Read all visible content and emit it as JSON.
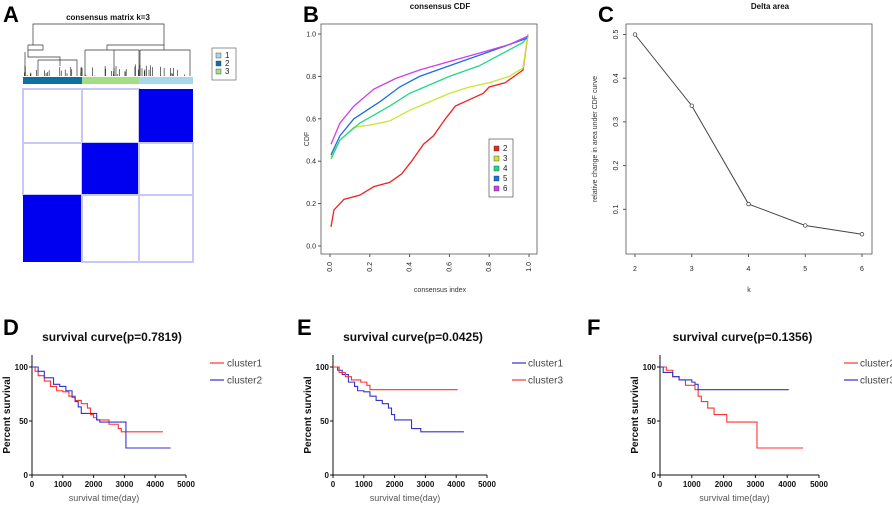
{
  "panel_labels": [
    "A",
    "B",
    "C",
    "D",
    "E",
    "F"
  ],
  "chart_data": [
    {
      "type": "heatmap",
      "title": "consensus matrix k=3",
      "column_cluster_order": [
        "2",
        "3",
        "1"
      ],
      "legend": [
        {
          "label": "1",
          "color": "#a8d8e8"
        },
        {
          "label": "2",
          "color": "#0f6fa0"
        },
        {
          "label": "3",
          "color": "#a5dc86"
        }
      ],
      "cell_color_high": "#0000f0",
      "cell_color_low": "#ffffff"
    },
    {
      "type": "line",
      "title": "consensus CDF",
      "xlabel": "consensus index",
      "ylabel": "CDF",
      "xlim": [
        0,
        1
      ],
      "ylim": [
        0,
        1
      ],
      "xticks": [
        "0.0",
        "0.2",
        "0.4",
        "0.6",
        "0.8",
        "1.0"
      ],
      "yticks": [
        "0.0",
        "0.2",
        "0.4",
        "0.6",
        "0.8",
        "1.0"
      ],
      "legend_position": "right",
      "series": [
        {
          "name": "2",
          "color": "#ee2222",
          "points": [
            [
              0.005,
              0.09
            ],
            [
              0.02,
              0.17
            ],
            [
              0.07,
              0.22
            ],
            [
              0.15,
              0.24
            ],
            [
              0.22,
              0.28
            ],
            [
              0.3,
              0.3
            ],
            [
              0.36,
              0.34
            ],
            [
              0.41,
              0.4
            ],
            [
              0.47,
              0.48
            ],
            [
              0.52,
              0.52
            ],
            [
              0.58,
              0.6
            ],
            [
              0.63,
              0.66
            ],
            [
              0.7,
              0.69
            ],
            [
              0.77,
              0.72
            ],
            [
              0.8,
              0.75
            ],
            [
              0.88,
              0.77
            ],
            [
              0.97,
              0.83
            ],
            [
              0.995,
              1.0
            ]
          ]
        },
        {
          "name": "3",
          "color": "#c8e632",
          "points": [
            [
              0.005,
              0.42
            ],
            [
              0.05,
              0.5
            ],
            [
              0.12,
              0.56
            ],
            [
              0.2,
              0.57
            ],
            [
              0.3,
              0.59
            ],
            [
              0.4,
              0.64
            ],
            [
              0.5,
              0.68
            ],
            [
              0.6,
              0.72
            ],
            [
              0.7,
              0.75
            ],
            [
              0.8,
              0.77
            ],
            [
              0.9,
              0.8
            ],
            [
              0.97,
              0.84
            ],
            [
              0.995,
              1.0
            ]
          ]
        },
        {
          "name": "4",
          "color": "#22d888",
          "points": [
            [
              0.005,
              0.41
            ],
            [
              0.05,
              0.5
            ],
            [
              0.15,
              0.58
            ],
            [
              0.3,
              0.66
            ],
            [
              0.4,
              0.72
            ],
            [
              0.5,
              0.76
            ],
            [
              0.6,
              0.8
            ],
            [
              0.75,
              0.85
            ],
            [
              0.85,
              0.9
            ],
            [
              0.97,
              0.96
            ],
            [
              0.995,
              0.99
            ]
          ]
        },
        {
          "name": "5",
          "color": "#1a6ee6",
          "points": [
            [
              0.005,
              0.43
            ],
            [
              0.05,
              0.52
            ],
            [
              0.12,
              0.6
            ],
            [
              0.25,
              0.68
            ],
            [
              0.35,
              0.75
            ],
            [
              0.45,
              0.8
            ],
            [
              0.6,
              0.85
            ],
            [
              0.75,
              0.9
            ],
            [
              0.9,
              0.95
            ],
            [
              0.99,
              0.98
            ]
          ]
        },
        {
          "name": "6",
          "color": "#d23ee6",
          "points": [
            [
              0.005,
              0.48
            ],
            [
              0.05,
              0.58
            ],
            [
              0.12,
              0.66
            ],
            [
              0.22,
              0.74
            ],
            [
              0.33,
              0.79
            ],
            [
              0.45,
              0.83
            ],
            [
              0.6,
              0.87
            ],
            [
              0.75,
              0.91
            ],
            [
              0.9,
              0.95
            ],
            [
              0.995,
              0.99
            ]
          ]
        }
      ]
    },
    {
      "type": "line",
      "title": "Delta area",
      "xlabel": "k",
      "ylabel": "relative change in area under CDF curve",
      "xticks": [
        "2",
        "3",
        "4",
        "5",
        "6"
      ],
      "yticks": [
        "0.1",
        "0.2",
        "0.3",
        "0.4",
        "0.5"
      ],
      "x": [
        2,
        3,
        4,
        5,
        6
      ],
      "y": [
        0.5,
        0.337,
        0.112,
        0.063,
        0.043
      ],
      "color": "#444444"
    },
    {
      "type": "line",
      "title": "survival curve(p=0.7819)",
      "xlabel": "survival time(day)",
      "ylabel": "Percent survival",
      "xlim": [
        0,
        5000
      ],
      "ylim": [
        0,
        100
      ],
      "xticks": [
        "0",
        "1000",
        "2000",
        "3000",
        "4000",
        "5000"
      ],
      "yticks": [
        "0",
        "50",
        "100"
      ],
      "series": [
        {
          "name": "cluster1",
          "color": "#ff3333",
          "points": [
            [
              0,
              100
            ],
            [
              100,
              96
            ],
            [
              200,
              92
            ],
            [
              400,
              87
            ],
            [
              600,
              82
            ],
            [
              800,
              78
            ],
            [
              1000,
              77
            ],
            [
              1200,
              73
            ],
            [
              1400,
              69
            ],
            [
              1600,
              66
            ],
            [
              1800,
              62
            ],
            [
              1900,
              56
            ],
            [
              2000,
              53
            ],
            [
              2100,
              51
            ],
            [
              2500,
              47
            ],
            [
              2800,
              43
            ],
            [
              2900,
              40
            ],
            [
              4250,
              40
            ]
          ]
        },
        {
          "name": "cluster2",
          "color": "#3333cc",
          "points": [
            [
              0,
              100
            ],
            [
              200,
              96
            ],
            [
              400,
              90
            ],
            [
              700,
              84
            ],
            [
              900,
              82
            ],
            [
              1100,
              78
            ],
            [
              1300,
              72
            ],
            [
              1400,
              68
            ],
            [
              1500,
              63
            ],
            [
              1600,
              57
            ],
            [
              2100,
              51
            ],
            [
              2200,
              49
            ],
            [
              3050,
              25
            ],
            [
              4500,
              25
            ]
          ]
        }
      ]
    },
    {
      "type": "line",
      "title": "survival curve(p=0.0425)",
      "xlabel": "survival time(day)",
      "ylabel": "Percent survival",
      "xlim": [
        0,
        5000
      ],
      "ylim": [
        0,
        100
      ],
      "xticks": [
        "0",
        "1000",
        "2000",
        "3000",
        "4000",
        "5000"
      ],
      "yticks": [
        "0",
        "50",
        "100"
      ],
      "series": [
        {
          "name": "cluster1",
          "color": "#3333cc",
          "points": [
            [
              0,
              100
            ],
            [
              150,
              97
            ],
            [
              300,
              93
            ],
            [
              500,
              86
            ],
            [
              700,
              82
            ],
            [
              800,
              78
            ],
            [
              1000,
              77
            ],
            [
              1200,
              73
            ],
            [
              1400,
              69
            ],
            [
              1600,
              66
            ],
            [
              1800,
              62
            ],
            [
              1900,
              56
            ],
            [
              2000,
              51
            ],
            [
              2550,
              43
            ],
            [
              2850,
              40
            ],
            [
              4250,
              40
            ]
          ]
        },
        {
          "name": "cluster3",
          "color": "#ff3333",
          "points": [
            [
              0,
              100
            ],
            [
              200,
              95
            ],
            [
              400,
              91
            ],
            [
              600,
              88
            ],
            [
              900,
              86
            ],
            [
              1100,
              83
            ],
            [
              1200,
              79
            ],
            [
              4050,
              79
            ]
          ]
        }
      ]
    },
    {
      "type": "line",
      "title": "survival curve(p=0.1356)",
      "xlabel": "survival time(day)",
      "ylabel": "Percent survival",
      "xlim": [
        0,
        5000
      ],
      "ylim": [
        0,
        100
      ],
      "xticks": [
        "0",
        "1000",
        "2000",
        "3000",
        "4000",
        "5000"
      ],
      "yticks": [
        "0",
        "50",
        "100"
      ],
      "series": [
        {
          "name": "cluster2",
          "color": "#ff3333",
          "points": [
            [
              0,
              100
            ],
            [
              200,
              97
            ],
            [
              400,
              91
            ],
            [
              600,
              88
            ],
            [
              800,
              83
            ],
            [
              1100,
              79
            ],
            [
              1200,
              73
            ],
            [
              1300,
              68
            ],
            [
              1500,
              62
            ],
            [
              1700,
              56
            ],
            [
              2100,
              49
            ],
            [
              3050,
              25
            ],
            [
              4500,
              25
            ]
          ]
        },
        {
          "name": "cluster3",
          "color": "#3333cc",
          "points": [
            [
              0,
              100
            ],
            [
              100,
              95
            ],
            [
              400,
              91
            ],
            [
              600,
              88
            ],
            [
              1000,
              86
            ],
            [
              1100,
              84
            ],
            [
              1200,
              79
            ],
            [
              4050,
              79
            ]
          ]
        }
      ]
    }
  ]
}
